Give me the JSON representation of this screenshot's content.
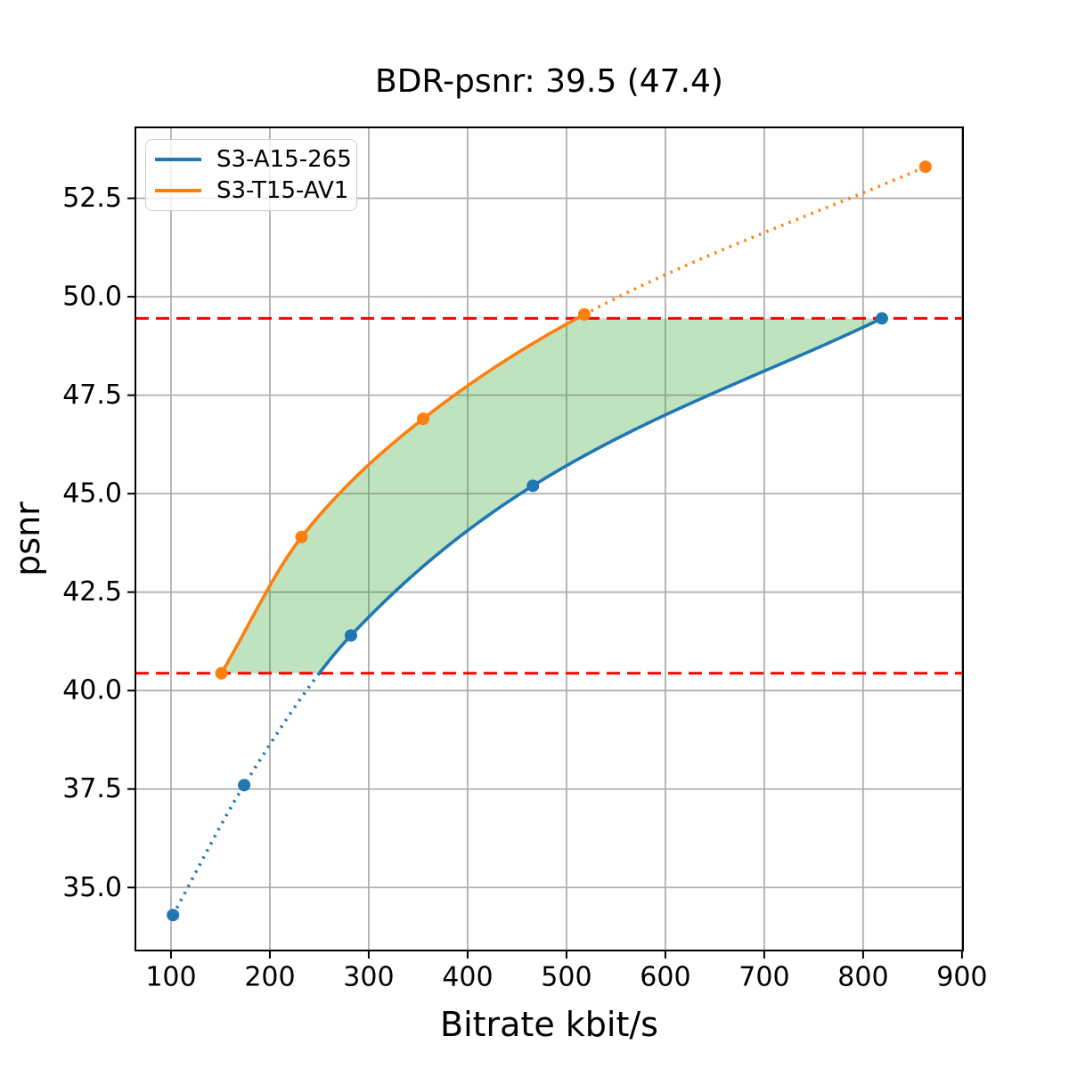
{
  "figure": {
    "title": "BDR-psnr: 39.5 (47.4)",
    "xlabel": "Bitrate kbit/s",
    "ylabel": "psnr"
  },
  "chart_data": {
    "type": "line",
    "title": "BDR-psnr: 39.5 (47.4)",
    "xlabel": "Bitrate kbit/s",
    "ylabel": "psnr",
    "xlim": [
      64,
      901
    ],
    "ylim": [
      33.4,
      54.3
    ],
    "x_ticks": [
      100,
      200,
      300,
      400,
      500,
      600,
      700,
      800,
      900
    ],
    "y_ticks": [
      35.0,
      37.5,
      40.0,
      42.5,
      45.0,
      47.5,
      50.0,
      52.5
    ],
    "grid": true,
    "grid_color": "#b0b0b0",
    "legend_position": "upper left",
    "series": [
      {
        "name": "S3-A15-265",
        "color": "#1f77b4",
        "points": [
          [
            102,
            34.3
          ],
          [
            174,
            37.6
          ],
          [
            282,
            41.4
          ],
          [
            466,
            45.2
          ],
          [
            819,
            49.45
          ]
        ]
      },
      {
        "name": "S3-T15-AV1",
        "color": "#ff7f0e",
        "points": [
          [
            151,
            40.44
          ],
          [
            232,
            43.9
          ],
          [
            355,
            46.9
          ],
          [
            518,
            49.55
          ],
          [
            863,
            53.3
          ]
        ]
      }
    ],
    "overlap_lines": {
      "style": "dashed",
      "color": "#ff0000",
      "low": 40.44,
      "high": 49.45
    },
    "shaded_region": {
      "fill_color": "#2ca02c",
      "fill_opacity": 0.3,
      "description": "area between the two curves clipped to the overlap interval [40.44, 49.45]"
    },
    "style_note": "curves solid inside overlap interval, dotted outside; round markers on all points"
  }
}
